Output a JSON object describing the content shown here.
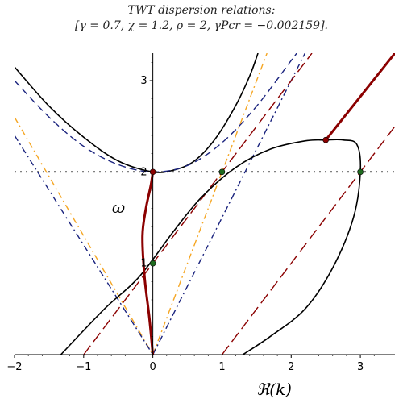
{
  "chart_data": {
    "type": "line",
    "title": "TWT dispersion relations:",
    "subtitle": "[γ = 0.7, χ = 1.2, ρ = 2, γPcr = −0.002159].",
    "xlabel": "ℜ(k)",
    "ylabel": "ω",
    "xlim": [
      -2,
      3.5
    ],
    "ylim": [
      0,
      3.3
    ],
    "x_ticks": [
      "−2",
      "−1",
      "0",
      "1",
      "2",
      "3"
    ],
    "y_ticks": [
      "1",
      "2",
      "3"
    ],
    "grid": false,
    "colors": {
      "black": "#000000",
      "navy": "#1a237e",
      "orange": "#f5a623",
      "darkred": "#8b0000",
      "point_red": "#8b0000",
      "point_green": "#1f6b1f"
    },
    "series": [
      {
        "id": "black-upper-parabola",
        "style": "solid",
        "color": "#000000",
        "width": 1.6,
        "points": [
          [
            -2,
            3.15
          ],
          [
            -1.5,
            2.72
          ],
          [
            -1,
            2.38
          ],
          [
            -0.5,
            2.12
          ],
          [
            0,
            2.0
          ],
          [
            0.3,
            2.02
          ],
          [
            0.6,
            2.12
          ],
          [
            0.9,
            2.36
          ],
          [
            1.2,
            2.73
          ],
          [
            1.4,
            3.05
          ],
          [
            1.52,
            3.3
          ]
        ]
      },
      {
        "id": "navy-dashed-parabola",
        "style": "dashed",
        "color": "#1a237e",
        "width": 1.4,
        "points": [
          [
            -2,
            3.0
          ],
          [
            -1.5,
            2.6
          ],
          [
            -1,
            2.28
          ],
          [
            -0.5,
            2.08
          ],
          [
            0,
            2.0
          ],
          [
            0.5,
            2.07
          ],
          [
            1,
            2.32
          ],
          [
            1.5,
            2.72
          ],
          [
            2,
            3.22
          ],
          [
            2.08,
            3.3
          ]
        ]
      },
      {
        "id": "horizontal-dotted-omega-2",
        "style": "dotted",
        "color": "#000000",
        "width": 1.6,
        "points": [
          [
            -2,
            2.0
          ],
          [
            3.5,
            2.0
          ]
        ]
      },
      {
        "id": "orange-dashdot-left",
        "style": "dashdot",
        "color": "#f5a623",
        "width": 1.4,
        "points": [
          [
            -2,
            2.6
          ],
          [
            0,
            0
          ]
        ]
      },
      {
        "id": "orange-dashdot-right",
        "style": "dashdot",
        "color": "#f5a623",
        "width": 1.4,
        "points": [
          [
            0,
            0
          ],
          [
            1.65,
            3.3
          ]
        ]
      },
      {
        "id": "navy-dashdot-left",
        "style": "dashdot",
        "color": "#1a237e",
        "width": 1.4,
        "points": [
          [
            -2,
            2.4
          ],
          [
            0,
            0
          ]
        ]
      },
      {
        "id": "navy-dashdot-right",
        "style": "dashdot",
        "color": "#1a237e",
        "width": 1.4,
        "points": [
          [
            0,
            0
          ],
          [
            2.2,
            3.3
          ]
        ]
      },
      {
        "id": "darkred-dashed-1",
        "style": "longdash",
        "color": "#8b0000",
        "width": 1.4,
        "points": [
          [
            -1,
            0
          ],
          [
            2.3,
            3.3
          ]
        ]
      },
      {
        "id": "darkred-dashed-2",
        "style": "longdash",
        "color": "#8b0000",
        "width": 1.4,
        "points": [
          [
            1,
            0
          ],
          [
            3.5,
            2.5
          ]
        ]
      },
      {
        "id": "black-lower-branch",
        "style": "solid",
        "color": "#000000",
        "width": 1.6,
        "points": [
          [
            -1.33,
            0
          ],
          [
            -0.7,
            0.5
          ],
          [
            -0.2,
            0.85
          ],
          [
            0.3,
            1.35
          ],
          [
            0.7,
            1.72
          ],
          [
            1.2,
            2.05
          ],
          [
            1.7,
            2.25
          ],
          [
            2.2,
            2.34
          ],
          [
            2.5,
            2.35
          ],
          [
            2.75,
            2.35
          ],
          [
            2.95,
            2.3
          ],
          [
            3.0,
            2.0
          ],
          [
            2.9,
            1.5
          ],
          [
            2.6,
            0.95
          ],
          [
            2.2,
            0.5
          ],
          [
            1.7,
            0.2
          ],
          [
            1.3,
            0
          ]
        ]
      },
      {
        "id": "darkred-thick-complex",
        "style": "solid",
        "color": "#8b0000",
        "width": 3,
        "points": [
          [
            0,
            0
          ],
          [
            -0.05,
            0.4
          ],
          [
            -0.12,
            0.85
          ],
          [
            -0.15,
            1.3
          ],
          [
            -0.1,
            1.6
          ],
          [
            -0.03,
            1.85
          ],
          [
            0,
            2.0
          ]
        ]
      },
      {
        "id": "darkred-thick-upper",
        "style": "solid",
        "color": "#8b0000",
        "width": 3,
        "points": [
          [
            2.5,
            2.35
          ],
          [
            3.5,
            3.3
          ]
        ]
      }
    ],
    "markers": [
      {
        "x": 0,
        "y": 2.0,
        "color": "#8b0000"
      },
      {
        "x": 2.5,
        "y": 2.35,
        "color": "#8b0000"
      },
      {
        "x": 0,
        "y": 1.0,
        "color": "#1f6b1f"
      },
      {
        "x": 1,
        "y": 2.0,
        "color": "#1f6b1f"
      },
      {
        "x": 3,
        "y": 2.0,
        "color": "#1f6b1f"
      }
    ]
  }
}
